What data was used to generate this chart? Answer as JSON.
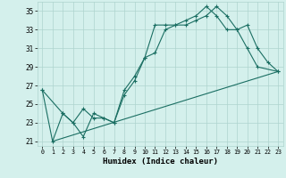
{
  "xlabel": "Humidex (Indice chaleur)",
  "bg_color": "#d4f0ec",
  "grid_color": "#aed4ce",
  "line_color": "#1a6e62",
  "xlim": [
    -0.5,
    23.5
  ],
  "ylim": [
    20.5,
    36.0
  ],
  "xticks": [
    0,
    1,
    2,
    3,
    4,
    5,
    6,
    7,
    8,
    9,
    10,
    11,
    12,
    13,
    14,
    15,
    16,
    17,
    18,
    19,
    20,
    21,
    22,
    23
  ],
  "yticks": [
    21,
    23,
    25,
    27,
    29,
    31,
    33,
    35
  ],
  "series": [
    {
      "x": [
        0,
        1,
        2,
        3,
        4,
        5,
        6,
        7,
        8,
        9,
        10,
        11,
        12,
        13,
        14,
        15,
        16,
        17,
        18,
        19,
        20,
        21,
        22,
        23
      ],
      "y": [
        26.5,
        21.0,
        24.0,
        23.0,
        21.5,
        24.0,
        23.5,
        23.0,
        26.0,
        27.5,
        30.0,
        30.5,
        33.0,
        33.5,
        33.5,
        34.0,
        34.5,
        35.5,
        34.5,
        33.0,
        33.5,
        31.0,
        29.5,
        28.5
      ],
      "marker": true
    },
    {
      "x": [
        1,
        23
      ],
      "y": [
        21.0,
        28.5
      ],
      "marker": false
    },
    {
      "x": [
        0,
        2,
        3,
        4,
        5,
        6,
        7,
        8,
        9,
        10,
        11,
        12,
        13,
        14,
        15,
        16,
        17,
        18,
        19,
        20,
        21,
        23
      ],
      "y": [
        26.5,
        24.0,
        23.0,
        24.5,
        23.5,
        23.5,
        23.0,
        26.5,
        28.0,
        30.0,
        33.5,
        33.5,
        33.5,
        34.0,
        34.5,
        35.5,
        34.5,
        33.0,
        33.0,
        31.0,
        29.0,
        28.5
      ],
      "marker": true
    }
  ]
}
